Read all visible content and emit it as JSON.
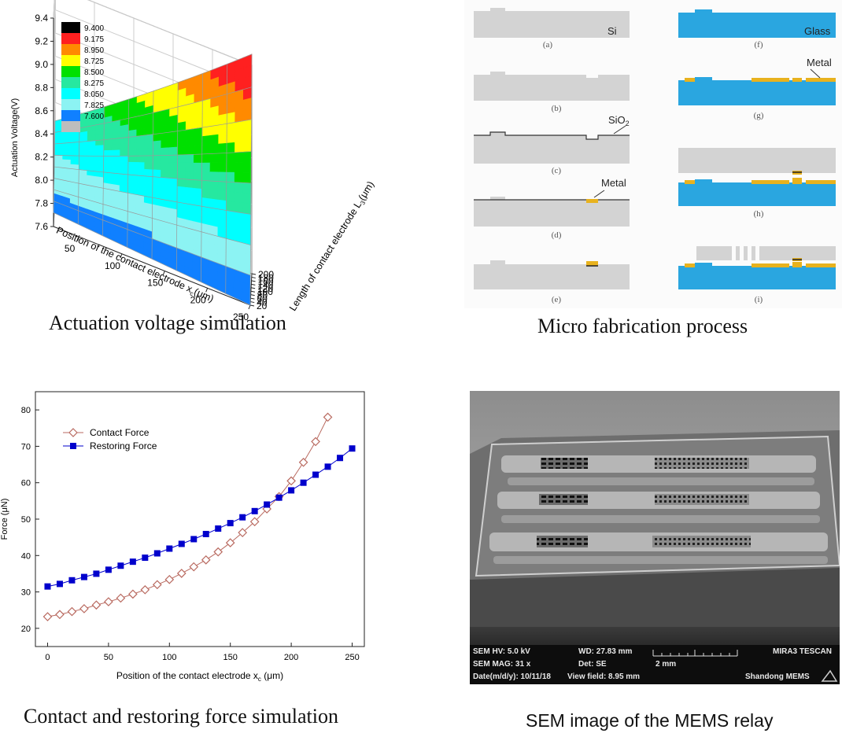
{
  "panels": {
    "voltage": {
      "caption": "Actuation voltage simulation",
      "zlabel": "Actuation Voltage(V)",
      "z_ticks": [
        "7.6",
        "7.8",
        "8.0",
        "8.2",
        "8.4",
        "8.6",
        "8.8",
        "9.0",
        "9.2",
        "9.4"
      ],
      "x_label_main": "Position of the contact electrode x",
      "x_label_sub": "c",
      "x_label_unit": "(μm)",
      "x_ticks": [
        "50",
        "100",
        "150",
        "200",
        "250"
      ],
      "y_label_main": "Length of contact electrode L",
      "y_label_sub": "3",
      "y_label_unit": "(μm)",
      "y_ticks": [
        "20",
        "40",
        "60",
        "80",
        "100",
        "120",
        "140",
        "160",
        "180",
        "200"
      ],
      "legend": [
        {
          "value": "9.400",
          "color": "#000000"
        },
        {
          "value": "9.175",
          "color": "#ff2020"
        },
        {
          "value": "8.950",
          "color": "#ff8a00"
        },
        {
          "value": "8.725",
          "color": "#ffff00"
        },
        {
          "value": "8.500",
          "color": "#00e000"
        },
        {
          "value": "8.275",
          "color": "#26e8a0"
        },
        {
          "value": "8.050",
          "color": "#00ffff"
        },
        {
          "value": "7.825",
          "color": "#8cf3f3"
        },
        {
          "value": "7.600",
          "color": "#1080ff"
        },
        {
          "value": "",
          "color": "#bdbdbd"
        }
      ]
    },
    "fabrication": {
      "caption": "Micro fabrication process",
      "steps": [
        "(a)",
        "(b)",
        "(c)",
        "(d)",
        "(e)",
        "(f)",
        "(g)",
        "(h)",
        "(i)"
      ],
      "labels": {
        "si": "Si",
        "sio2_main": "SiO",
        "sio2_sub": "2",
        "metal": "Metal",
        "glass": "Glass"
      },
      "colors": {
        "silicon": "#d3d3d3",
        "glass": "#2aa6e0",
        "metal": "#e8b21e"
      }
    },
    "force": {
      "caption": "Contact and restoring force simulation",
      "ylabel": "Force (μN)",
      "xlabel_main": "Position of the contact electrode x",
      "xlabel_sub": "c",
      "xlabel_unit": " (μm)"
    },
    "sem": {
      "caption": "SEM image of the MEMS relay",
      "hv": "SEM HV: 5.0 kV",
      "wd": "WD: 27.83 mm",
      "brand": "MIRA3 TESCAN",
      "mag": "SEM MAG: 31 x",
      "det": "Det: SE",
      "scale": "2 mm",
      "date": "Date(m/d/y): 10/11/18",
      "view": "View field: 8.95 mm",
      "org": "Shandong MEMS"
    }
  },
  "chart_data": [
    {
      "type": "line",
      "x": [
        0,
        10,
        20,
        30,
        40,
        50,
        60,
        70,
        80,
        90,
        100,
        110,
        120,
        130,
        140,
        150,
        160,
        170,
        180,
        190,
        200,
        210,
        220,
        230,
        240,
        250
      ],
      "series": [
        {
          "name": "Contact Force",
          "color": "#b96a60",
          "marker": "diamond-open",
          "values": [
            23.2,
            23.8,
            24.6,
            25.4,
            26.4,
            27.3,
            28.3,
            29.4,
            30.6,
            32.0,
            33.4,
            35.1,
            36.9,
            38.8,
            41.0,
            43.5,
            46.3,
            49.3,
            52.8,
            56.2,
            60.5,
            65.6,
            71.3,
            78.0,
            null,
            null
          ]
        },
        {
          "name": "Restoring Force",
          "color": "#0000cc",
          "marker": "square",
          "values": [
            31.5,
            32.2,
            33.2,
            34.1,
            35.0,
            36.1,
            37.2,
            38.3,
            39.4,
            40.6,
            41.9,
            43.2,
            44.5,
            45.9,
            47.4,
            48.9,
            50.5,
            52.2,
            54.0,
            55.9,
            57.9,
            60.0,
            62.2,
            64.4,
            66.8,
            69.4
          ]
        }
      ],
      "xlabel": "Position of the contact electrode x_c (μm)",
      "ylabel": "Force (μN)",
      "xlim": [
        -10,
        260
      ],
      "ylim": [
        15,
        85
      ],
      "x_ticks": [
        0,
        50,
        100,
        150,
        200,
        250
      ],
      "y_ticks": [
        20,
        30,
        40,
        50,
        60,
        70,
        80
      ],
      "legend_position": "top-left",
      "grid": false
    },
    {
      "type": "surface3d",
      "x": [
        20,
        250
      ],
      "y": [
        20,
        200
      ],
      "z_range": [
        7.6,
        9.4
      ],
      "xlabel": "Position of the contact electrode x_c(μm)",
      "ylabel": "Length of contact electrode L_3(μm)",
      "zlabel": "Actuation Voltage(V)",
      "corner_values": {
        "x20_y20": 7.72,
        "x250_y20": 7.6,
        "x20_y200": 8.24,
        "x250_y200": 9.4
      }
    }
  ]
}
